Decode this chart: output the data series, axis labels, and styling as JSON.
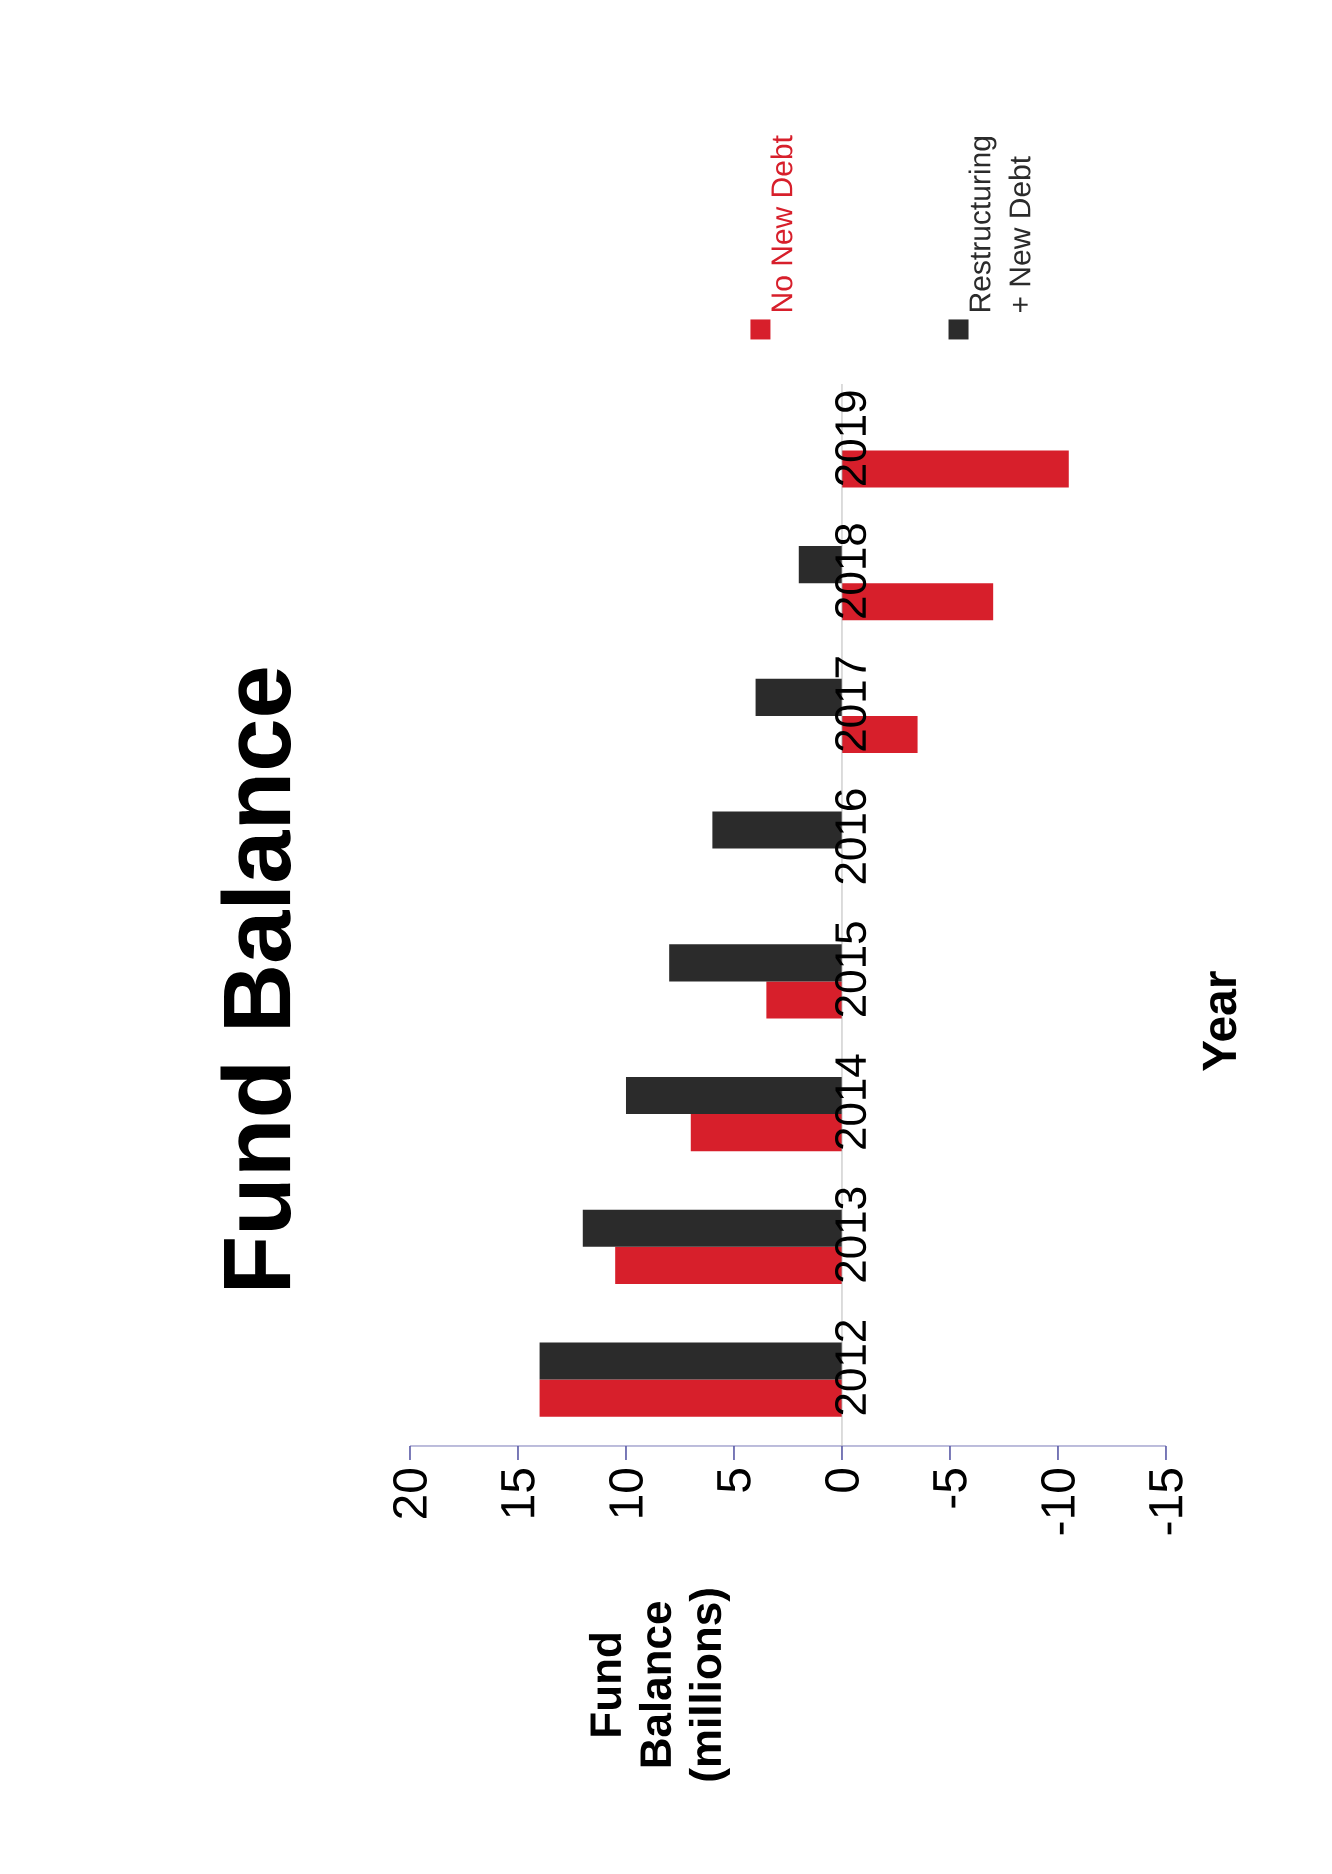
{
  "chart_data": {
    "type": "bar",
    "orientation": "horizontal",
    "title": "Fund Balance",
    "y2label": "Year",
    "ylabel": "Fund Balance (millions)",
    "categories": [
      "2019",
      "2018",
      "2017",
      "2016",
      "2015",
      "2014",
      "2013",
      "2012"
    ],
    "series": [
      {
        "name": "No New Debt",
        "color": "#d71f2b",
        "values": [
          -10.5,
          -7,
          -3.5,
          0,
          3.5,
          7,
          10.5,
          14
        ]
      },
      {
        "name": "Restructuring + New Debt",
        "color": "#2b2b2b",
        "values": [
          0,
          2,
          4,
          6,
          8,
          10,
          12,
          14
        ]
      }
    ],
    "xlim": [
      20,
      -15
    ],
    "xticks": [
      20,
      15,
      10,
      5,
      0,
      -5,
      -10,
      -15
    ],
    "legend": "top right"
  }
}
